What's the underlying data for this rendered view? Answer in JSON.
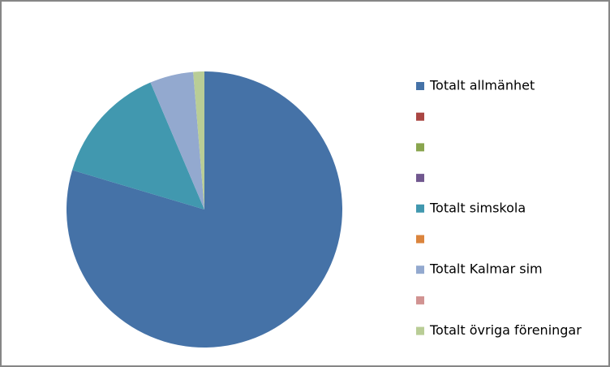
{
  "chart_data": {
    "type": "pie",
    "categories": [
      "Totalt allmänhet",
      null,
      null,
      null,
      "Totalt simskola",
      null,
      "Totalt Kalmar sim",
      null,
      "Totalt övriga föreningar"
    ],
    "values": [
      79.6,
      0,
      0,
      0,
      14,
      0,
      5.1,
      0,
      1.3
    ],
    "colors": [
      "#4572a7",
      "#aa4643",
      "#89a54e",
      "#71588f",
      "#4198af",
      "#db843d",
      "#93a9cf",
      "#d19392",
      "#b9cd96"
    ],
    "legend": "right"
  }
}
